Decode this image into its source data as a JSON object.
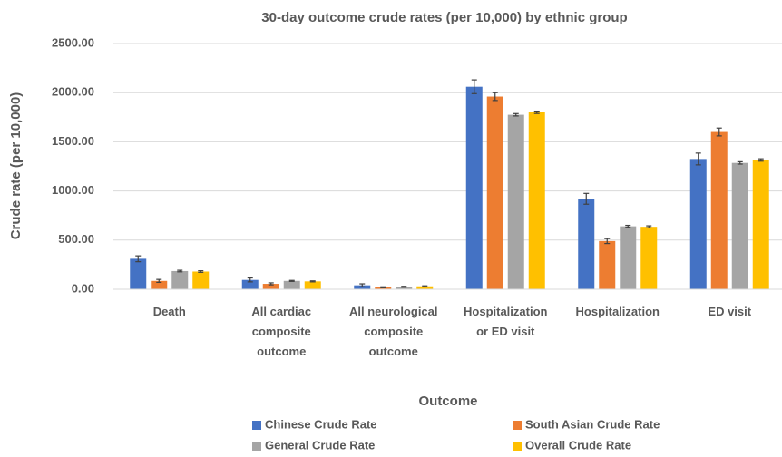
{
  "chart_data": {
    "type": "bar",
    "title": "30-day outcome crude rates (per 10,000) by ethnic group",
    "x_label": "Outcome",
    "y_label": "Crude rate (per 10,000)",
    "categories": [
      "Death",
      "All cardiac composite outcome",
      "All neurological composite outcome",
      "Hospitalization or ED visit",
      "Hospitalization",
      "ED visit"
    ],
    "series": [
      {
        "name": "Chinese Crude Rate",
        "color": "#4472c4",
        "values": [
          310,
          95,
          40,
          2060,
          920,
          1325
        ],
        "errors": [
          30,
          20,
          15,
          70,
          55,
          60
        ]
      },
      {
        "name": "South Asian Crude Rate",
        "color": "#ed7d31",
        "values": [
          85,
          55,
          20,
          1960,
          490,
          1600
        ],
        "errors": [
          15,
          10,
          5,
          40,
          25,
          40
        ]
      },
      {
        "name": "General Crude Rate",
        "color": "#a5a5a5",
        "values": [
          185,
          85,
          25,
          1775,
          640,
          1285
        ],
        "errors": [
          8,
          5,
          5,
          12,
          10,
          12
        ]
      },
      {
        "name": "Overall Crude Rate",
        "color": "#ffc000",
        "values": [
          180,
          80,
          30,
          1800,
          635,
          1315
        ],
        "errors": [
          8,
          5,
          5,
          12,
          10,
          12
        ]
      }
    ],
    "ylim": [
      0,
      2500
    ],
    "yticks": [
      {
        "value": 0,
        "label": "0.00"
      },
      {
        "value": 500,
        "label": "500.00"
      },
      {
        "value": 1000,
        "label": "1000.00"
      },
      {
        "value": 1500,
        "label": "1500.00"
      },
      {
        "value": 2000,
        "label": "2000.00"
      },
      {
        "value": 2500,
        "label": "2500.00"
      }
    ],
    "grid": true,
    "legend": "bottom"
  }
}
